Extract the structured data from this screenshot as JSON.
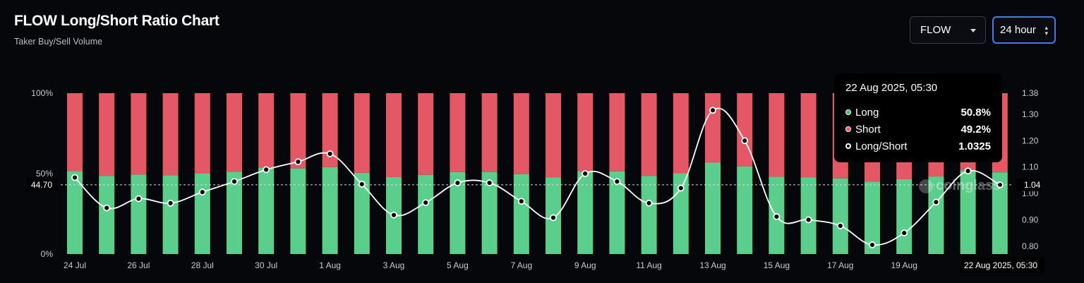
{
  "header": {
    "title": "FLOW Long/Short Ratio Chart",
    "subtitle": "Taker Buy/Sell Volume"
  },
  "controls": {
    "symbol": "FLOW",
    "period": "24 hour"
  },
  "tooltip": {
    "time": "22 Aug 2025, 05:30",
    "rows": [
      {
        "label": "Long",
        "value": "50.8%",
        "color": "#3fc07a"
      },
      {
        "label": "Short",
        "value": "49.2%",
        "color": "#e85a66"
      },
      {
        "label": "Long/Short",
        "value": "1.0325",
        "color": "#ffffff"
      }
    ]
  },
  "crosshair": {
    "left_label": "44.70",
    "right_label": "1.04",
    "x_label": "22 Aug 2025, 05:30"
  },
  "watermark": "coinglass",
  "colors": {
    "long": "#5cce8b",
    "short": "#e35864",
    "line": "#ffffff",
    "background": "#06070b",
    "accent": "#3f7ee0"
  },
  "chart_data": {
    "type": "bar",
    "stacked": true,
    "categories": [
      "24 Jul",
      "25 Jul",
      "26 Jul",
      "27 Jul",
      "28 Jul",
      "29 Jul",
      "30 Jul",
      "31 Jul",
      "1 Aug",
      "2 Aug",
      "3 Aug",
      "4 Aug",
      "5 Aug",
      "6 Aug",
      "7 Aug",
      "8 Aug",
      "9 Aug",
      "10 Aug",
      "11 Aug",
      "12 Aug",
      "13 Aug",
      "14 Aug",
      "15 Aug",
      "16 Aug",
      "17 Aug",
      "18 Aug",
      "19 Aug",
      "20 Aug",
      "21 Aug",
      "22 Aug"
    ],
    "x_tick_labels": [
      "24 Jul",
      "26 Jul",
      "28 Jul",
      "30 Jul",
      "1 Aug",
      "3 Aug",
      "5 Aug",
      "7 Aug",
      "9 Aug",
      "11 Aug",
      "13 Aug",
      "15 Aug",
      "17 Aug",
      "19 Aug",
      "2"
    ],
    "series": [
      {
        "name": "Long",
        "axis": "left",
        "values": [
          51.5,
          48.5,
          49.4,
          49.0,
          50.0,
          51.2,
          53.5,
          53.2,
          54.0,
          50.5,
          47.8,
          49.2,
          51.0,
          51.0,
          49.6,
          47.6,
          51.3,
          51.4,
          48.5,
          50.2,
          56.8,
          54.5,
          48.0,
          47.6,
          47.0,
          45.0,
          46.5,
          48.2,
          52.0,
          50.8
        ]
      },
      {
        "name": "Short",
        "axis": "left",
        "values": [
          48.5,
          51.5,
          50.6,
          51.0,
          50.0,
          48.8,
          46.5,
          46.8,
          46.0,
          49.5,
          52.2,
          50.8,
          49.0,
          49.0,
          50.4,
          52.4,
          48.7,
          48.6,
          51.5,
          49.8,
          43.2,
          45.5,
          52.0,
          52.4,
          53.0,
          55.0,
          53.5,
          51.8,
          48.0,
          49.2
        ]
      },
      {
        "name": "Long/Short",
        "axis": "right",
        "type": "line",
        "values": [
          1.06,
          0.945,
          0.98,
          0.963,
          1.005,
          1.045,
          1.09,
          1.12,
          1.15,
          1.035,
          0.918,
          0.965,
          1.04,
          1.04,
          0.97,
          0.908,
          1.075,
          1.045,
          0.963,
          1.02,
          1.315,
          1.2,
          0.912,
          0.9,
          0.877,
          0.805,
          0.85,
          0.967,
          1.085,
          1.0325
        ]
      }
    ],
    "y_left": {
      "ticks": [
        "100%",
        "50%",
        "0%"
      ],
      "range": [
        0,
        100
      ]
    },
    "y_right": {
      "ticks": [
        "1.38",
        "1.30",
        "1.20",
        "1.10",
        "1.00",
        "0.90",
        "0.80"
      ],
      "range": [
        0.77,
        1.38
      ]
    },
    "grid": false,
    "legend": "none"
  }
}
